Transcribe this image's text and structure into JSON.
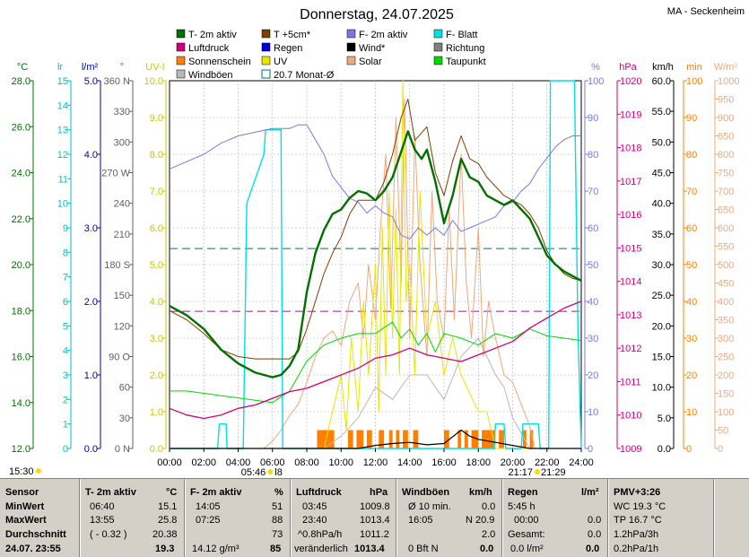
{
  "title": "Donnerstag, 24.07.2025",
  "station": "MA - Seckenheim",
  "legend": [
    {
      "label": "T- 2m aktiv",
      "color": "#007000",
      "box": "fill"
    },
    {
      "label": "T +5cm*",
      "color": "#7b3f00",
      "box": "fill"
    },
    {
      "label": "F- 2m aktiv",
      "color": "#7878e6",
      "box": "fill"
    },
    {
      "label": "F- Blatt",
      "color": "#00e0e0",
      "box": "fill"
    },
    {
      "label": "Luftdruck",
      "color": "#d0007a",
      "box": "fill"
    },
    {
      "label": "Regen",
      "color": "#0000d8",
      "box": "fill"
    },
    {
      "label": "Wind*",
      "color": "#000000",
      "box": "fill"
    },
    {
      "label": "Richtung",
      "color": "#808080",
      "box": "fill"
    },
    {
      "label": "Sonnenschein",
      "color": "#ff8000",
      "box": "fill"
    },
    {
      "label": "UV",
      "color": "#e6e600",
      "box": "fill"
    },
    {
      "label": "Solar",
      "color": "#f0a878",
      "box": "fill"
    },
    {
      "label": "Taupunkt",
      "color": "#00d800",
      "box": "fill"
    },
    {
      "label": "Windböen",
      "color": "#b8b8b8",
      "box": "fill"
    },
    {
      "label": "20.7 Monat-Ø",
      "color": "#007070",
      "box": "outline"
    }
  ],
  "axes": {
    "temp": {
      "unit": "°C",
      "color": "#007000",
      "ticks": [
        "28.0",
        "26.0",
        "24.0",
        "22.0",
        "20.0",
        "18.0",
        "16.0",
        "14.0",
        "12.0"
      ]
    },
    "lr": {
      "unit": "lr",
      "color": "#00c0c0",
      "ticks": [
        "15",
        "14",
        "13",
        "12",
        "11",
        "10",
        "9",
        "8",
        "7",
        "6",
        "5",
        "4",
        "3",
        "2",
        "1",
        "0"
      ]
    },
    "rain": {
      "unit": "l/m²",
      "color": "#0000b0",
      "ticks": [
        "5.0",
        "4.0",
        "3.0",
        "2.0",
        "1.0",
        "0.0"
      ]
    },
    "dir": {
      "unit": "°",
      "color": "#606060",
      "ticks": [
        "360 N",
        "330",
        "300",
        "270 W",
        "240",
        "210",
        "180 S",
        "150",
        "120",
        "90 O",
        "60",
        "30",
        "0 N"
      ]
    },
    "uv": {
      "unit": "UV-I",
      "color": "#c8c800",
      "ticks": [
        "10.0",
        "9.0",
        "8.0",
        "7.0",
        "6.0",
        "5.0",
        "4.0",
        "3.0",
        "2.0",
        "1.0",
        "0.0"
      ]
    },
    "hum": {
      "unit": "%",
      "color": "#7878e6",
      "ticks": [
        "100",
        "90",
        "80",
        "70",
        "60",
        "50",
        "40",
        "30",
        "20",
        "10",
        "0"
      ]
    },
    "press": {
      "unit": "hPa",
      "color": "#d0007a",
      "ticks": [
        "1020",
        "1019",
        "1018",
        "1017",
        "1016",
        "1015",
        "1014",
        "1013",
        "1012",
        "1011",
        "1010",
        "1009"
      ]
    },
    "wind": {
      "unit": "km/h",
      "color": "#000000",
      "ticks": [
        "60.0",
        "55.0",
        "50.0",
        "45.0",
        "40.0",
        "35.0",
        "30.0",
        "25.0",
        "20.0",
        "15.0",
        "10.0",
        "5.0",
        "0.0"
      ]
    },
    "sun": {
      "unit": "min",
      "color": "#ff8000",
      "ticks": [
        "100",
        "90",
        "80",
        "70",
        "60",
        "50",
        "40",
        "30",
        "20",
        "10",
        "0"
      ]
    },
    "solar": {
      "unit": "W/m²",
      "color": "#f0a878",
      "ticks": [
        "1000",
        "950",
        "900",
        "850",
        "800",
        "750",
        "700",
        "650",
        "600",
        "550",
        "500",
        "450",
        "400",
        "350",
        "300",
        "250",
        "200",
        "150",
        "100",
        "50",
        "0"
      ]
    }
  },
  "x_ticks": [
    "00:00",
    "02:00",
    "04:00",
    "06:00",
    "08:00",
    "10:00",
    "12:00",
    "14:00",
    "16:00",
    "18:00",
    "20:00",
    "22:00",
    "24:00"
  ],
  "sunrise": "05:46",
  "sunrise_extra": "l8",
  "sunset": "21:17",
  "sunset_extra": "21:29",
  "current_time": "15:30",
  "chart_data": {
    "type": "line",
    "x_unit": "hours",
    "xlim": [
      0,
      24
    ],
    "series": [
      {
        "name": "T- 2m aktiv",
        "axis": "temp",
        "ylim": [
          12,
          28
        ],
        "x": [
          0,
          1,
          2,
          3,
          4,
          5,
          5.5,
          6,
          6.5,
          7,
          7.5,
          8,
          8.5,
          9,
          9.5,
          10,
          10.5,
          11,
          11.5,
          12,
          12.5,
          13,
          13.5,
          13.9,
          14.3,
          14.7,
          15,
          15.5,
          16,
          16.5,
          17,
          17.5,
          18,
          18.5,
          19,
          19.5,
          20,
          20.5,
          21,
          21.5,
          22,
          22.5,
          23,
          23.5,
          24
        ],
        "y": [
          18.2,
          17.8,
          17.2,
          16.3,
          15.7,
          15.3,
          15.2,
          15.1,
          15.2,
          15.6,
          16.3,
          18.8,
          20.5,
          21.5,
          22.2,
          22.4,
          22.9,
          23.2,
          23.1,
          22.8,
          23.2,
          23.8,
          24.9,
          25.8,
          25.0,
          24.6,
          25.0,
          23.6,
          21.8,
          23.0,
          24.6,
          23.8,
          23.6,
          23.0,
          22.8,
          22.6,
          22.8,
          22.4,
          22.0,
          21.2,
          20.4,
          20.0,
          19.7,
          19.5,
          19.3
        ]
      },
      {
        "name": "T +5cm*",
        "axis": "temp",
        "ylim": [
          12,
          28
        ],
        "x": [
          0,
          1,
          2,
          3,
          4,
          5,
          6,
          7,
          7.5,
          8,
          8.5,
          9,
          9.5,
          10,
          10.5,
          11,
          11.5,
          12,
          12.5,
          13,
          13.5,
          13.9,
          14.3,
          15,
          15.5,
          16,
          16.5,
          17,
          17.5,
          18,
          18.5,
          19,
          19.5,
          20,
          20.5,
          21,
          21.5,
          22,
          22.5,
          23,
          23.5,
          24
        ],
        "y": [
          18.0,
          17.6,
          17.0,
          16.3,
          16.0,
          15.9,
          15.9,
          15.9,
          16.2,
          17.2,
          18.4,
          19.6,
          20.5,
          21.2,
          22.2,
          22.8,
          22.8,
          22.8,
          23.6,
          24.8,
          26.4,
          27.2,
          25.4,
          26.0,
          24.0,
          23.0,
          24.5,
          25.6,
          24.6,
          24.4,
          23.8,
          23.4,
          23.0,
          22.8,
          22.6,
          22.2,
          21.6,
          20.6,
          20.0,
          19.6,
          19.4,
          19.3
        ]
      },
      {
        "name": "F- 2m aktiv",
        "axis": "hum",
        "ylim": [
          0,
          100
        ],
        "x": [
          0,
          1,
          2,
          3,
          4,
          5,
          6,
          7,
          7.5,
          8,
          8.5,
          9,
          9.5,
          10,
          10.5,
          11,
          11.5,
          12,
          12.5,
          13,
          13.5,
          14,
          14.5,
          15,
          15.5,
          16,
          16.5,
          17,
          17.5,
          18,
          18.5,
          19,
          19.5,
          20,
          20.5,
          21,
          21.5,
          22,
          22.5,
          23,
          23.5,
          24
        ],
        "y": [
          76,
          78,
          80,
          83,
          85,
          86,
          87,
          87,
          88,
          88,
          84,
          80,
          74,
          71,
          68,
          67,
          64,
          66,
          64,
          63,
          58,
          57,
          60,
          58,
          60,
          58,
          62,
          59,
          60,
          61,
          62,
          63,
          66,
          67,
          70,
          72,
          76,
          79,
          82,
          84,
          85,
          85
        ]
      },
      {
        "name": "F- Blatt",
        "axis": "lr",
        "ylim": [
          0,
          15
        ],
        "x": [
          0,
          2.8,
          2.9,
          3.3,
          3.35,
          4.3,
          4.5,
          5.5,
          5.6,
          6.5,
          6.6,
          18.9,
          19,
          19.5,
          19.6,
          20.5,
          20.6,
          21.5,
          21.6,
          22.1,
          22.2,
          23.6,
          23.8,
          24
        ],
        "y": [
          0,
          0,
          1,
          1,
          0,
          0,
          10,
          12,
          13,
          13,
          0,
          0,
          1,
          1,
          0,
          0,
          1,
          1,
          0,
          0,
          15,
          15,
          5,
          0
        ]
      },
      {
        "name": "Luftdruck",
        "axis": "press",
        "ylim": [
          1009,
          1020
        ],
        "x": [
          0,
          1,
          2,
          3,
          4,
          5,
          6,
          7,
          8,
          9,
          10,
          11,
          12,
          13,
          14,
          15,
          16,
          17,
          18,
          19,
          20,
          21,
          22,
          23,
          24
        ],
        "y": [
          1010.2,
          1010.0,
          1009.9,
          1010.0,
          1010.2,
          1010.3,
          1010.5,
          1010.7,
          1010.8,
          1011.0,
          1011.2,
          1011.4,
          1011.7,
          1011.8,
          1012.0,
          1011.8,
          1011.7,
          1011.6,
          1011.8,
          1012.0,
          1012.2,
          1012.6,
          1012.9,
          1013.2,
          1013.4
        ]
      },
      {
        "name": "Taupunkt",
        "axis": "temp",
        "ylim": [
          12,
          28
        ],
        "x": [
          0,
          1,
          2,
          3,
          4,
          5,
          6,
          7,
          8,
          9,
          10,
          11,
          12,
          13,
          13.5,
          14,
          14.5,
          15,
          15.5,
          16,
          17,
          18,
          19,
          20,
          21,
          22,
          23,
          24
        ],
        "y": [
          14.5,
          14.5,
          14.4,
          14.3,
          14.2,
          14.1,
          14.0,
          14.5,
          15.8,
          16.5,
          16.8,
          17.0,
          17.0,
          17.5,
          16.8,
          17.2,
          16.5,
          17.0,
          16.2,
          17.0,
          16.8,
          16.5,
          17.0,
          16.8,
          17.2,
          16.9,
          16.8,
          16.7
        ]
      },
      {
        "name": "Solar",
        "axis": "solar",
        "ylim": [
          0,
          1000
        ],
        "x": [
          0,
          5.5,
          6,
          6.5,
          7,
          7.5,
          8,
          8.5,
          9,
          9.5,
          10,
          10.5,
          11,
          11.3,
          11.6,
          12,
          12.3,
          12.6,
          12.9,
          13.2,
          13.5,
          13.7,
          14,
          14.3,
          14.6,
          15,
          15.3,
          15.6,
          16,
          16.3,
          16.6,
          17,
          17.3,
          17.6,
          18,
          18.3,
          18.6,
          19,
          19.5,
          20,
          20.5,
          21,
          21.3,
          24
        ],
        "y": [
          0,
          0,
          20,
          50,
          90,
          120,
          180,
          250,
          300,
          320,
          280,
          400,
          450,
          300,
          500,
          350,
          600,
          800,
          380,
          900,
          450,
          950,
          300,
          850,
          500,
          250,
          700,
          400,
          300,
          650,
          350,
          800,
          450,
          300,
          600,
          250,
          400,
          300,
          200,
          180,
          120,
          60,
          0,
          0
        ]
      },
      {
        "name": "UV",
        "axis": "uv",
        "ylim": [
          0,
          10
        ],
        "x": [
          0,
          6,
          7,
          8,
          9,
          9.5,
          10,
          10.3,
          10.6,
          11,
          11.3,
          11.6,
          12,
          12.2,
          12.4,
          12.6,
          12.8,
          13,
          13.2,
          13.4,
          13.6,
          13.8,
          14,
          14.3,
          14.6,
          15,
          15.5,
          16,
          16.5,
          17,
          17.5,
          18,
          18.5,
          19,
          20,
          24
        ],
        "y": [
          0,
          0,
          0,
          0,
          0,
          1,
          2,
          0.5,
          3,
          1,
          4,
          2,
          5,
          1,
          6,
          2,
          7,
          3,
          6.5,
          2,
          10,
          4,
          5,
          2,
          7,
          3,
          4,
          2,
          3,
          2,
          1.5,
          1,
          1,
          0,
          0,
          0
        ]
      },
      {
        "name": "Windböen",
        "axis": "wind",
        "ylim": [
          0,
          60
        ],
        "x": [
          0,
          8,
          9,
          10,
          11,
          12,
          13,
          14,
          15,
          16,
          17,
          18,
          19,
          19.5,
          20,
          21,
          22,
          24
        ],
        "y": [
          0,
          0,
          0,
          2,
          5,
          10,
          8,
          12,
          12,
          8,
          15,
          18,
          12,
          10,
          5,
          0,
          0,
          0
        ]
      },
      {
        "name": "Wind*",
        "axis": "wind",
        "ylim": [
          0,
          60
        ],
        "x": [
          0,
          11,
          12,
          13,
          14,
          15,
          16,
          17,
          17.5,
          18,
          19,
          20,
          21,
          24
        ],
        "y": [
          0,
          0,
          0.5,
          0.8,
          1,
          0.6,
          0.8,
          3,
          2,
          1.5,
          1,
          0.5,
          0,
          0
        ]
      },
      {
        "name": "Sonnenschein",
        "axis": "sun",
        "ylim": [
          0,
          100
        ],
        "type": "bar",
        "intervals": [
          [
            8.6,
            9.6
          ],
          [
            10.4,
            10.7
          ],
          [
            10.9,
            11.3
          ],
          [
            11.5,
            11.8
          ],
          [
            12.2,
            12.5
          ],
          [
            12.8,
            13.0
          ],
          [
            13.2,
            13.4
          ],
          [
            13.6,
            13.9
          ],
          [
            14.2,
            14.5
          ],
          [
            16.0,
            16.3
          ],
          [
            16.8,
            17.0
          ],
          [
            17.2,
            17.4
          ],
          [
            17.6,
            18.0
          ],
          [
            18.2,
            19.0
          ],
          [
            19.2,
            19.5
          ],
          [
            20.6,
            20.8
          ],
          [
            21.0,
            21.2
          ]
        ],
        "value": 5
      }
    ],
    "monthly_mean": {
      "label": "20.7 Monat-Ø",
      "axis": "temp",
      "value": 20.7
    },
    "pressure_mean": {
      "axis": "press",
      "value": 1013.1
    }
  },
  "stats": {
    "header": {
      "c0": "Sensor",
      "c1": "T- 2m aktiv",
      "c1u": "°C",
      "c2": "F- 2m aktiv",
      "c2u": "%",
      "c3": "Luftdruck",
      "c3u": "hPa",
      "c4": "Windböen",
      "c4u": "km/h",
      "c5": "Regen",
      "c5u": "l/m²",
      "c6": "PMV+3:26"
    },
    "row1": {
      "c0": "MinWert",
      "c1t": "06:40",
      "c1v": "15.1",
      "c2t": "14:05",
      "c2v": "51",
      "c3t": "03:45",
      "c3v": "1009.8",
      "c4t": "Ø 10 min.",
      "c4v": "0.0",
      "c5t": "5:45 h",
      "c5v": "",
      "c6": "WC 19.3 °C"
    },
    "row2": {
      "c0": "MaxWert",
      "c1t": "13:55",
      "c1v": "25.8",
      "c2t": "07:25",
      "c2v": "88",
      "c3t": "23:40",
      "c3v": "1013.4",
      "c4t": "16:05",
      "c4v": "N 20.9",
      "c5t": "00:00",
      "c5v": "0.0",
      "c6": "TP 16.7 °C"
    },
    "row3": {
      "c0": "Durchschnitt",
      "c1t": "( - 0.32 )",
      "c1v": "20.38",
      "c2t": "",
      "c2v": "73",
      "c3t": "^0.8hPa/h",
      "c3v": "1011.2",
      "c4t": "",
      "c4v": "2.0",
      "c5t": "Gesamt:",
      "c5v": "0.0",
      "c6": "1.2hPa/3h"
    },
    "row4": {
      "c0": "24.07. 23:55",
      "c1t": "",
      "c1v": "19.3",
      "c2t": "14.12 g/m³",
      "c2v": "85",
      "c3t": "veränderlich",
      "c3v": "1013.4",
      "c4t": "0 Bft N",
      "c4v": "0.0",
      "c5t": "0.0 l/m²",
      "c5v": "0.0",
      "c6": "0.2hPa/1h"
    }
  }
}
